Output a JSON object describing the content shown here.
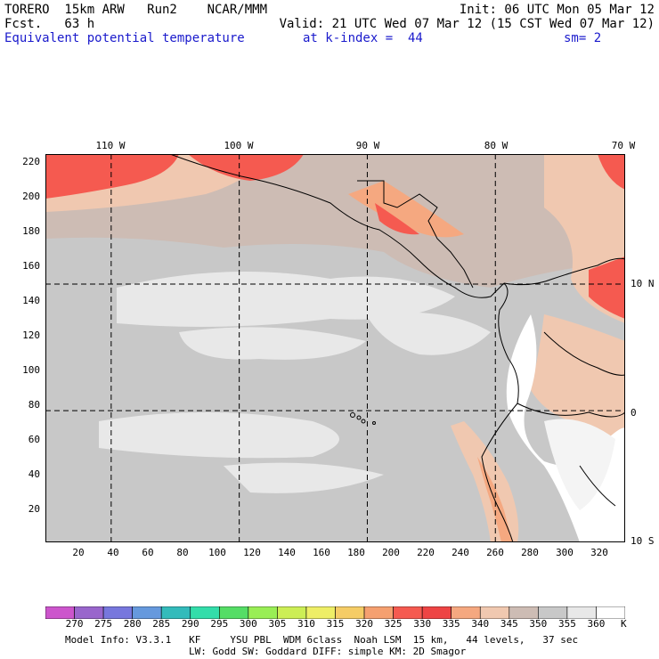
{
  "header": {
    "line1_left": "TORERO  15km ARW   Run2    NCAR/MMM",
    "line1_right": "Init: 06 UTC Mon 05 Mar 12",
    "line2_left": "Fcst.   63 h",
    "line2_right": "Valid: 21 UTC Wed 07 Mar 12 (15 CST Wed 07 Mar 12)",
    "field_name": "Equivalent potential temperature",
    "level": "at k-index =  44",
    "smoothing": "sm= 2"
  },
  "map": {
    "top_lon_labels": [
      "110 W",
      "100 W",
      "90 W",
      "80 W",
      "70 W"
    ],
    "right_lat_labels": [
      "10 N",
      "0",
      "10 S"
    ],
    "y_ticks": [
      "220",
      "200",
      "180",
      "160",
      "140",
      "120",
      "100",
      "80",
      "60",
      "40",
      "20"
    ],
    "x_ticks": [
      "20",
      "40",
      "60",
      "80",
      "100",
      "120",
      "140",
      "160",
      "180",
      "200",
      "220",
      "240",
      "260",
      "280",
      "300",
      "320"
    ],
    "x_range": [
      0,
      335
    ],
    "y_range": [
      0,
      224
    ],
    "grid_lon_x": [
      38,
      112,
      186,
      260
    ],
    "grid_lat_y": [
      149,
      76
    ]
  },
  "colorbar": {
    "labels": [
      "270",
      "275",
      "280",
      "285",
      "290",
      "295",
      "300",
      "305",
      "310",
      "315",
      "320",
      "325",
      "330",
      "335",
      "340",
      "345",
      "350",
      "355",
      "360"
    ],
    "unit": "K",
    "colors": [
      "#cc55cc",
      "#9966cc",
      "#7777dd",
      "#6699dd",
      "#33bbbb",
      "#33ddaa",
      "#55dd66",
      "#99ee55",
      "#ccee55",
      "#eeee66",
      "#f5cc66",
      "#f5a070",
      "#f55a50",
      "#ee4444",
      "#f5a880",
      "#f0c8b0",
      "#cdbcb4",
      "#c8c8c8",
      "#e8e8e8",
      "#ffffff"
    ]
  },
  "footer": {
    "line1": "Model Info: V3.3.1   KF     YSU PBL  WDM 6class  Noah LSM  15 km,   44 levels,   37 sec",
    "line2": "LW: Godd SW: Goddard DIFF: simple KM: 2D Smagor"
  }
}
